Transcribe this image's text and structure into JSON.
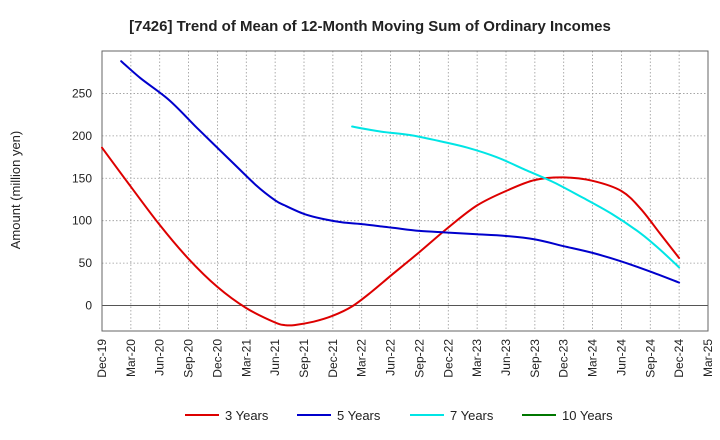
{
  "chart_data": {
    "type": "line",
    "title": "[7426]  Trend of Mean of 12-Month Moving Sum of Ordinary Incomes",
    "xlabel": "",
    "ylabel": "Amount (million yen)",
    "ylim": [
      -30,
      300
    ],
    "yticks": [
      0,
      50,
      100,
      150,
      200,
      250
    ],
    "x_range": [
      0,
      60
    ],
    "x_ticks": [
      {
        "i": 0,
        "label": "Dec-19"
      },
      {
        "i": 3,
        "label": "Mar-20"
      },
      {
        "i": 6,
        "label": "Jun-20"
      },
      {
        "i": 9,
        "label": "Sep-20"
      },
      {
        "i": 12,
        "label": "Dec-20"
      },
      {
        "i": 15,
        "label": "Mar-21"
      },
      {
        "i": 18,
        "label": "Jun-21"
      },
      {
        "i": 21,
        "label": "Sep-21"
      },
      {
        "i": 24,
        "label": "Dec-21"
      },
      {
        "i": 27,
        "label": "Mar-22"
      },
      {
        "i": 30,
        "label": "Jun-22"
      },
      {
        "i": 33,
        "label": "Sep-22"
      },
      {
        "i": 36,
        "label": "Dec-22"
      },
      {
        "i": 39,
        "label": "Mar-23"
      },
      {
        "i": 42,
        "label": "Jun-23"
      },
      {
        "i": 45,
        "label": "Sep-23"
      },
      {
        "i": 48,
        "label": "Dec-23"
      },
      {
        "i": 51,
        "label": "Mar-24"
      },
      {
        "i": 54,
        "label": "Jun-24"
      },
      {
        "i": 57,
        "label": "Sep-24"
      },
      {
        "i": 60,
        "label": "Dec-24"
      },
      {
        "i": 63,
        "label": "Mar-25"
      }
    ],
    "grid": true,
    "legend_position": "bottom",
    "series": [
      {
        "name": "3 Years",
        "color": "#dd0000",
        "points": [
          [
            0,
            186
          ],
          [
            3,
            140
          ],
          [
            6,
            95
          ],
          [
            9,
            55
          ],
          [
            12,
            22
          ],
          [
            15,
            -3
          ],
          [
            18,
            -20
          ],
          [
            19,
            -23
          ],
          [
            20,
            -23
          ],
          [
            22,
            -19
          ],
          [
            24,
            -12
          ],
          [
            26,
            -1
          ],
          [
            28,
            16
          ],
          [
            30,
            35
          ],
          [
            33,
            63
          ],
          [
            36,
            92
          ],
          [
            39,
            118
          ],
          [
            42,
            135
          ],
          [
            45,
            148
          ],
          [
            48,
            151
          ],
          [
            51,
            147
          ],
          [
            54,
            135
          ],
          [
            56,
            114
          ],
          [
            58,
            85
          ],
          [
            60,
            56
          ]
        ]
      },
      {
        "name": "5 Years",
        "color": "#0000cc",
        "points": [
          [
            2,
            288
          ],
          [
            4,
            268
          ],
          [
            7,
            242
          ],
          [
            10,
            208
          ],
          [
            13,
            175
          ],
          [
            16,
            142
          ],
          [
            18,
            124
          ],
          [
            19,
            118
          ],
          [
            21,
            108
          ],
          [
            23,
            102
          ],
          [
            25,
            98
          ],
          [
            27,
            96
          ],
          [
            30,
            92
          ],
          [
            33,
            88
          ],
          [
            36,
            86
          ],
          [
            39,
            84
          ],
          [
            42,
            82
          ],
          [
            45,
            78
          ],
          [
            48,
            70
          ],
          [
            51,
            62
          ],
          [
            54,
            52
          ],
          [
            57,
            40
          ],
          [
            60,
            27
          ]
        ]
      },
      {
        "name": "7 Years",
        "color": "#00e5e5",
        "points": [
          [
            26,
            211
          ],
          [
            29,
            205
          ],
          [
            32,
            201
          ],
          [
            35,
            194
          ],
          [
            38,
            186
          ],
          [
            41,
            175
          ],
          [
            44,
            160
          ],
          [
            47,
            145
          ],
          [
            50,
            127
          ],
          [
            53,
            108
          ],
          [
            56,
            85
          ],
          [
            58,
            66
          ],
          [
            60,
            45
          ]
        ]
      },
      {
        "name": "10 Years",
        "color": "#007700",
        "points": []
      }
    ]
  }
}
